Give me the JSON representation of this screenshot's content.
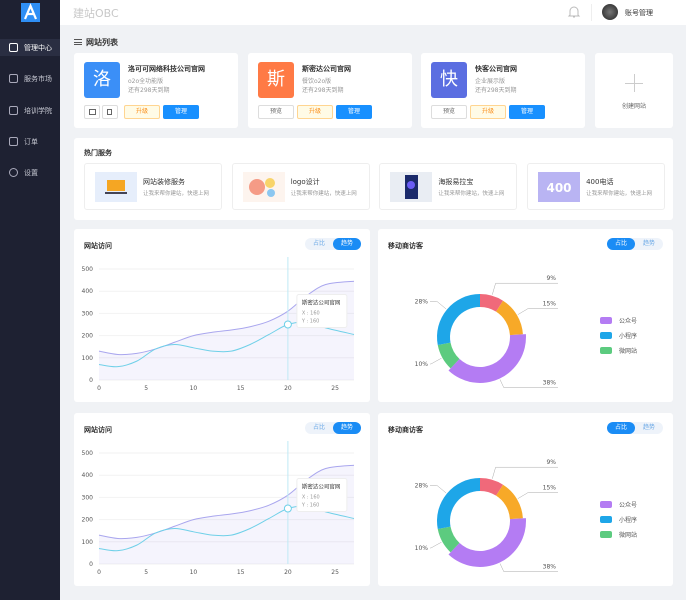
{
  "header": {
    "brand": "建站OBC",
    "account": "账号管理"
  },
  "sidebar": {
    "menu": [
      "管理中心",
      "服务市场",
      "培训学院",
      "订单",
      "设置"
    ]
  },
  "sites": {
    "title": "网站列表",
    "create": "创建网站",
    "cards": [
      {
        "icon": "洛",
        "name": "洛可可网络科技公司官网",
        "plan": "o2o全功能版",
        "expiry": "还有298天到期",
        "buttons": [
          "升级",
          "管理"
        ]
      },
      {
        "icon": "斯",
        "name": "斯密达公司官网",
        "plan": "餐饮o2o版",
        "expiry": "还有298天到期",
        "buttons": [
          "预览",
          "升级",
          "管理"
        ]
      },
      {
        "icon": "快",
        "name": "快客公司官网",
        "plan": "企业展示版",
        "expiry": "还有298天到期",
        "buttons": [
          "预览",
          "升级",
          "管理"
        ]
      }
    ]
  },
  "services": {
    "title": "热门服务",
    "items": [
      {
        "name": "网站装修服务",
        "desc": "让我来帮你建站，快速上网"
      },
      {
        "name": "logo设计",
        "desc": "让我来帮你建站，快速上网"
      },
      {
        "name": "海报易拉宝",
        "desc": "让我来帮你建站，快速上网"
      },
      {
        "name": "400电话",
        "desc": "让我来帮你建站，快速上网",
        "image_text": "400"
      }
    ]
  },
  "chart_data": [
    {
      "type": "line",
      "title": "网站访问",
      "tabs": [
        "占比",
        "趋势"
      ],
      "active_tab": 1,
      "tooltip": {
        "title": "斯密达公司官网",
        "lines": [
          "X : 160",
          "Y : 160"
        ]
      },
      "x": [
        0,
        2,
        4,
        6,
        8,
        10,
        12,
        14,
        16,
        18,
        20,
        22,
        24,
        27
      ],
      "xlim": [
        0,
        27
      ],
      "xticks": [
        0,
        5,
        10,
        15,
        20,
        25
      ],
      "ylim": [
        0,
        500
      ],
      "yticks": [
        0,
        100,
        200,
        300,
        400,
        500
      ],
      "grid": true,
      "series": [
        {
          "color": "#a9a6ee",
          "values": [
            130,
            115,
            120,
            140,
            170,
            200,
            215,
            225,
            240,
            265,
            310,
            380,
            430,
            445
          ]
        },
        {
          "color": "#6fd0e8",
          "values": [
            70,
            60,
            85,
            140,
            160,
            145,
            130,
            130,
            160,
            205,
            250,
            260,
            235,
            205
          ]
        }
      ]
    },
    {
      "type": "pie",
      "title": "移动商访客",
      "tabs": [
        "占比",
        "趋势"
      ],
      "active_tab": 0,
      "values": [
        9,
        15,
        38,
        10,
        28
      ],
      "value_labels": [
        "9%",
        "15%",
        "38%",
        "10%",
        "28%"
      ],
      "colors": [
        "#f0697a",
        "#f7a928",
        "#b47cf3",
        "#5ccb7f",
        "#1ea6e8"
      ],
      "legend": [
        {
          "name": "公众号",
          "color": "#b47cf3"
        },
        {
          "name": "小程序",
          "color": "#1ea6e8"
        },
        {
          "name": "微网站",
          "color": "#5ccb7f"
        }
      ]
    },
    {
      "type": "line",
      "title": "网站访问",
      "tabs": [
        "占比",
        "趋势"
      ],
      "active_tab": 1,
      "tooltip": {
        "title": "斯密达公司官网",
        "lines": [
          "X : 160",
          "Y : 160"
        ]
      },
      "x": [
        0,
        2,
        4,
        6,
        8,
        10,
        12,
        14,
        16,
        18,
        20,
        22,
        24,
        27
      ],
      "xlim": [
        0,
        27
      ],
      "xticks": [
        0,
        5,
        10,
        15,
        20,
        25
      ],
      "ylim": [
        0,
        500
      ],
      "yticks": [
        0,
        100,
        200,
        300,
        400,
        500
      ],
      "grid": true,
      "series": [
        {
          "color": "#a9a6ee",
          "values": [
            130,
            115,
            120,
            140,
            170,
            200,
            215,
            225,
            240,
            265,
            310,
            380,
            430,
            445
          ]
        },
        {
          "color": "#6fd0e8",
          "values": [
            70,
            60,
            85,
            140,
            160,
            145,
            130,
            130,
            160,
            205,
            250,
            260,
            235,
            205
          ]
        }
      ]
    },
    {
      "type": "pie",
      "title": "移动商访客",
      "tabs": [
        "占比",
        "趋势"
      ],
      "active_tab": 0,
      "values": [
        9,
        15,
        38,
        10,
        28
      ],
      "value_labels": [
        "9%",
        "15%",
        "38%",
        "10%",
        "28%"
      ],
      "colors": [
        "#f0697a",
        "#f7a928",
        "#b47cf3",
        "#5ccb7f",
        "#1ea6e8"
      ],
      "legend": [
        {
          "name": "公众号",
          "color": "#b47cf3"
        },
        {
          "name": "小程序",
          "color": "#1ea6e8"
        },
        {
          "name": "微网站",
          "color": "#5ccb7f"
        }
      ]
    }
  ]
}
